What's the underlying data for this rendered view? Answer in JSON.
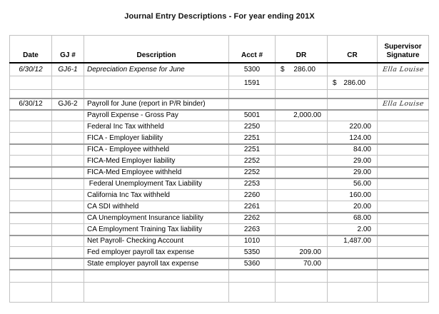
{
  "title": "Journal Entry Descriptions - For year ending 201X",
  "colors": {
    "selection_border": "#a9c6e6",
    "selection_border_bottom": "#4472a8",
    "grid_line": "#c2c2c2",
    "grid_line_thick": "#9a9a9a",
    "header_rule": "#000000",
    "background": "#ffffff"
  },
  "table": {
    "columns": [
      "Date",
      "GJ #",
      "Description",
      "Acct #",
      "DR",
      "CR",
      "Supervisor Signature"
    ],
    "rows": [
      {
        "date": "6/30/12",
        "gj": "GJ6-1",
        "desc": "Depreciation Expense for June",
        "acct": "5300",
        "dr_sym": "$",
        "dr": "286.00",
        "cr": "",
        "sig": "Ella Louise",
        "italic": true
      },
      {
        "date": "",
        "gj": "",
        "desc": "",
        "acct": "1591",
        "dr": "",
        "cr_sym": "$",
        "cr": "286.00",
        "sig": ""
      },
      {
        "date": "",
        "gj": "",
        "desc": "",
        "acct": "",
        "dr": "",
        "cr": "",
        "sig": ""
      },
      {
        "date": "6/30/12",
        "gj": "GJ6-2",
        "desc": "Payroll for June (report in P/R binder)",
        "acct": "",
        "dr": "",
        "cr": "",
        "sig": "Ella Louise"
      },
      {
        "date": "",
        "gj": "",
        "desc": "Payroll Expense - Gross Pay",
        "acct": "5001",
        "dr": "2,000.00",
        "cr": "",
        "sig": ""
      },
      {
        "date": "",
        "gj": "",
        "desc": "Federal Inc Tax withheld",
        "acct": "2250",
        "dr": "",
        "cr": "220.00",
        "sig": ""
      },
      {
        "date": "",
        "gj": "",
        "desc": "FICA - Employer liability",
        "acct": "2251",
        "dr": "",
        "cr": "124.00",
        "sig": ""
      },
      {
        "date": "",
        "gj": "",
        "desc": "FICA - Employee withheld",
        "acct": "2251",
        "dr": "",
        "cr": "84.00",
        "sig": ""
      },
      {
        "date": "",
        "gj": "",
        "desc": "FICA-Med Employer liability",
        "acct": "2252",
        "dr": "",
        "cr": "29.00",
        "sig": ""
      },
      {
        "date": "",
        "gj": "",
        "desc": "FICA-Med Employee withheld",
        "acct": "2252",
        "dr": "",
        "cr": "29.00",
        "sig": ""
      },
      {
        "date": "",
        "gj": "",
        "desc": " Federal Unemployment Tax Liability",
        "acct": "2253",
        "dr": "",
        "cr": "56.00",
        "sig": "",
        "selected_dr": true
      },
      {
        "date": "",
        "gj": "",
        "desc": "California Inc Tax withheld",
        "acct": "2260",
        "dr": "",
        "cr": "160.00",
        "sig": ""
      },
      {
        "date": "",
        "gj": "",
        "desc": "CA SDI withheld",
        "acct": "2261",
        "dr": "",
        "cr": "20.00",
        "sig": ""
      },
      {
        "date": "",
        "gj": "",
        "desc": "CA Unemployment Insurance liability",
        "acct": "2262",
        "dr": "",
        "cr": "68.00",
        "sig": ""
      },
      {
        "date": "",
        "gj": "",
        "desc": "CA Employment Training Tax liability",
        "acct": "2263",
        "dr": "",
        "cr": "2.00",
        "sig": ""
      },
      {
        "date": "",
        "gj": "",
        "desc": "Net Payroll- Checking Account",
        "acct": "1010",
        "dr": "",
        "cr": "1,487.00",
        "sig": ""
      },
      {
        "date": "",
        "gj": "",
        "desc": "Fed employer payroll tax expense",
        "acct": "5350",
        "dr": "209.00",
        "cr": "",
        "sig": ""
      },
      {
        "date": "",
        "gj": "",
        "desc": "State employer payroll tax expense",
        "acct": "5360",
        "dr": "70.00",
        "cr": "",
        "sig": ""
      },
      {
        "date": "",
        "gj": "",
        "desc": "",
        "acct": "",
        "dr": "",
        "cr": "",
        "sig": ""
      },
      {
        "date": "",
        "gj": "",
        "desc": "",
        "acct": "",
        "dr": "",
        "cr": "",
        "sig": ""
      }
    ]
  }
}
